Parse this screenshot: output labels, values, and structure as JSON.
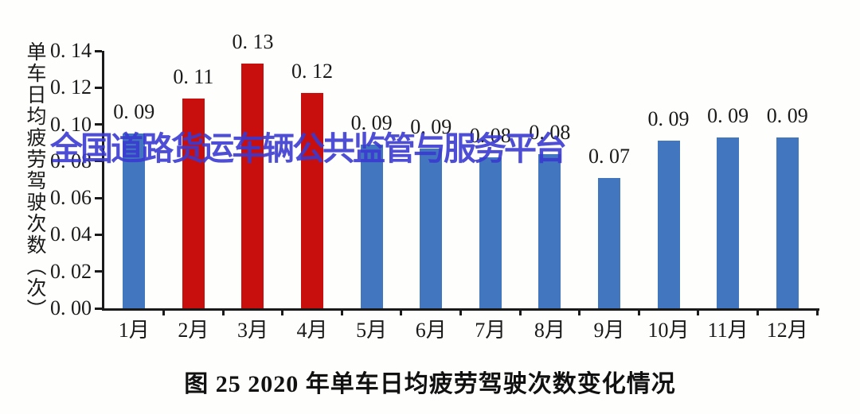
{
  "figure": {
    "caption": "图 25 2020 年单车日均疲劳驾驶次数变化情况",
    "watermark": "全国道路货运车辆公共监管与服务平台"
  },
  "chart_data": {
    "type": "bar",
    "title": "",
    "xlabel": "",
    "ylabel": "单车日均疲劳驾驶次数（次）",
    "categories": [
      "1月",
      "2月",
      "3月",
      "4月",
      "5月",
      "6月",
      "7月",
      "8月",
      "9月",
      "10月",
      "11月",
      "12月"
    ],
    "values": [
      0.09,
      0.11,
      0.13,
      0.12,
      0.09,
      0.09,
      0.08,
      0.08,
      0.07,
      0.09,
      0.09,
      0.09
    ],
    "value_labels": [
      "0. 09",
      "0. 11",
      "0. 13",
      "0. 12",
      "0. 09",
      "0. 09",
      "0. 08",
      "0. 08",
      "0. 07",
      "0. 09",
      "0. 09",
      "0. 09"
    ],
    "values_precise": [
      0.095,
      0.114,
      0.133,
      0.117,
      0.089,
      0.087,
      0.082,
      0.084,
      0.071,
      0.091,
      0.093,
      0.093
    ],
    "bar_colors": [
      "#4276be",
      "#c90e0e",
      "#c90e0e",
      "#c90e0e",
      "#4276be",
      "#4276be",
      "#4276be",
      "#4276be",
      "#4276be",
      "#4276be",
      "#4276be",
      "#4276be"
    ],
    "ylim": [
      0,
      0.14
    ],
    "ytick_step": 0.02,
    "ytick_labels": [
      "0. 00",
      "0. 02",
      "0. 04",
      "0. 06",
      "0. 08",
      "0. 10",
      "0. 12",
      "0. 14"
    ],
    "grid": false,
    "legend": null,
    "colors": {
      "blue_bar": "#4276be",
      "red_bar": "#c90e0e",
      "axis": "#1a1a1a",
      "watermark": "#3a3ad0",
      "text": "#1a1a1a",
      "background": "#fefefc"
    }
  }
}
